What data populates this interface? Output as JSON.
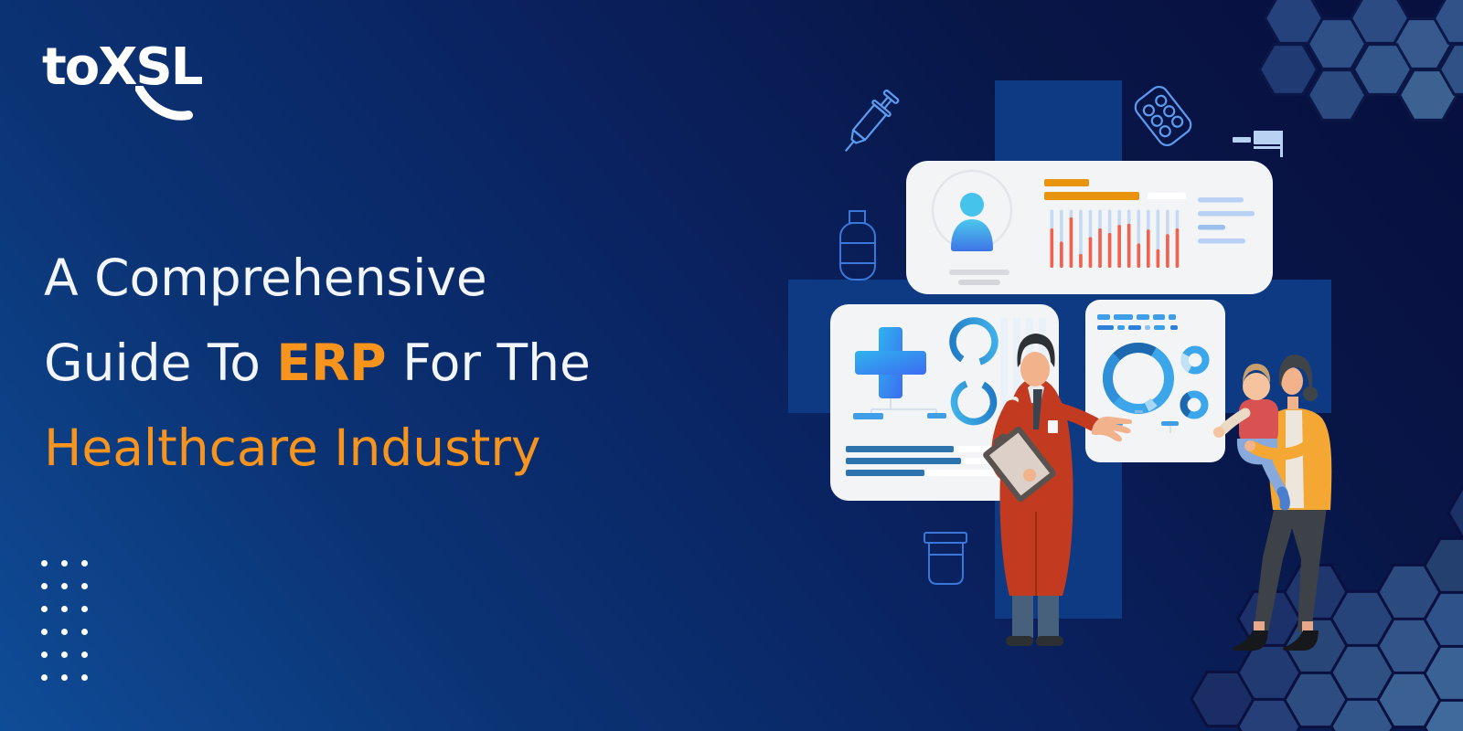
{
  "brand": {
    "logo_text": "toXSL"
  },
  "headline": {
    "line1": "A Comprehensive",
    "line2_prefix": "Guide To ",
    "line2_highlight": "ERP",
    "line2_suffix": " For The",
    "line3": "Healthcare Industry"
  },
  "colors": {
    "background_start": "#0f4c97",
    "background_end": "#070f3e",
    "accent_orange": "#f7941e",
    "headline_white": "#f2f5f9",
    "card_bg": "#f3f4f6",
    "cross_backdrop_blue": "#0e3a84",
    "chart_red": "#f2604e",
    "chart_blue_light": "#c5d9f2",
    "chart_orange": "#e8940f",
    "chart_steel_blue": "#2d73ad",
    "chart_bright_blue": "#3f9ee8",
    "icon_outline_blue": "#5d9cf0",
    "doctor_coat_red": "#c23b20",
    "woman_cardigan_orange": "#f5a733"
  },
  "illustration": {
    "description": "Doctor in red coat presenting healthcare dashboards; woman holding child; medical outline icons; hexagon decor",
    "profile_card": {
      "bar_chart": {
        "type": "bar",
        "bars": 14,
        "red_fractions": [
          0.68,
          0.45,
          0.87,
          0.24,
          0.53,
          0.68,
          0.6,
          0.74,
          0.76,
          0.42,
          0.66,
          0.32,
          0.58,
          0.68
        ]
      },
      "orange_title_bars": 2,
      "text_lines_right": 4
    },
    "icons": [
      "syringe-icon",
      "pill-blister-icon",
      "medicine-bottle-icon",
      "medicine-jar-icon",
      "hospital-bed-icon"
    ]
  },
  "decor": {
    "dot_grid": {
      "rows": 6,
      "cols": 3,
      "dot_color": "#ffffff"
    },
    "hexagon_clusters": 2
  }
}
